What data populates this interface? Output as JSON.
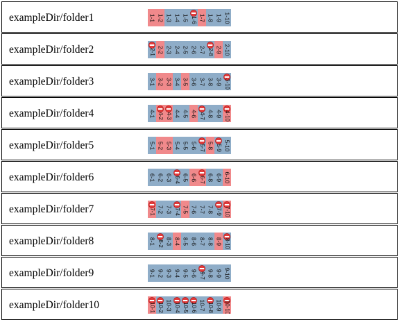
{
  "rows": [
    {
      "path": "exampleDir/folder1",
      "cells": [
        {
          "label": "1-1",
          "color": "red",
          "blocked": false
        },
        {
          "label": "1-2",
          "color": "red",
          "blocked": false
        },
        {
          "label": "1-3",
          "color": "blue",
          "blocked": false
        },
        {
          "label": "1-4",
          "color": "blue",
          "blocked": false
        },
        {
          "label": "1-5",
          "color": "blue",
          "blocked": false
        },
        {
          "label": "1-6",
          "color": "blue",
          "blocked": true
        },
        {
          "label": "1-7",
          "color": "red",
          "blocked": false
        },
        {
          "label": "1-8",
          "color": "blue",
          "blocked": false
        },
        {
          "label": "1-9",
          "color": "blue",
          "blocked": false
        },
        {
          "label": "1-10",
          "color": "blue",
          "blocked": false
        }
      ]
    },
    {
      "path": "exampleDir/folder2",
      "cells": [
        {
          "label": "2-1",
          "color": "blue",
          "blocked": true
        },
        {
          "label": "2-2",
          "color": "red",
          "blocked": false
        },
        {
          "label": "2-3",
          "color": "blue",
          "blocked": false
        },
        {
          "label": "2-4",
          "color": "blue",
          "blocked": false
        },
        {
          "label": "2-5",
          "color": "blue",
          "blocked": false
        },
        {
          "label": "2-6",
          "color": "blue",
          "blocked": false
        },
        {
          "label": "2-7",
          "color": "blue",
          "blocked": false
        },
        {
          "label": "2-8",
          "color": "blue",
          "blocked": true
        },
        {
          "label": "2-9",
          "color": "red",
          "blocked": false
        },
        {
          "label": "2-10",
          "color": "blue",
          "blocked": false
        }
      ]
    },
    {
      "path": "exampleDir/folder3",
      "cells": [
        {
          "label": "3-1",
          "color": "blue",
          "blocked": false
        },
        {
          "label": "3-2",
          "color": "red",
          "blocked": false
        },
        {
          "label": "3-3",
          "color": "red",
          "blocked": false
        },
        {
          "label": "3-4",
          "color": "blue",
          "blocked": false
        },
        {
          "label": "3-5",
          "color": "red",
          "blocked": false
        },
        {
          "label": "3-6",
          "color": "blue",
          "blocked": false
        },
        {
          "label": "3-7",
          "color": "blue",
          "blocked": false
        },
        {
          "label": "3-8",
          "color": "blue",
          "blocked": false
        },
        {
          "label": "3-9",
          "color": "blue",
          "blocked": false
        },
        {
          "label": "3-10",
          "color": "blue",
          "blocked": true
        }
      ]
    },
    {
      "path": "exampleDir/folder4",
      "cells": [
        {
          "label": "4-1",
          "color": "blue",
          "blocked": false
        },
        {
          "label": "4-2",
          "color": "red",
          "blocked": true
        },
        {
          "label": "4-3",
          "color": "red",
          "blocked": true
        },
        {
          "label": "4-4",
          "color": "blue",
          "blocked": false
        },
        {
          "label": "4-5",
          "color": "blue",
          "blocked": false
        },
        {
          "label": "4-6",
          "color": "red",
          "blocked": false
        },
        {
          "label": "4-7",
          "color": "blue",
          "blocked": true
        },
        {
          "label": "4-8",
          "color": "blue",
          "blocked": false
        },
        {
          "label": "4-9",
          "color": "blue",
          "blocked": false
        },
        {
          "label": "4-10",
          "color": "red",
          "blocked": true
        }
      ]
    },
    {
      "path": "exampleDir/folder5",
      "cells": [
        {
          "label": "5-1",
          "color": "blue",
          "blocked": false
        },
        {
          "label": "5-2",
          "color": "red",
          "blocked": false
        },
        {
          "label": "5-3",
          "color": "red",
          "blocked": false
        },
        {
          "label": "5-4",
          "color": "blue",
          "blocked": false
        },
        {
          "label": "5-5",
          "color": "blue",
          "blocked": false
        },
        {
          "label": "5-6",
          "color": "blue",
          "blocked": false
        },
        {
          "label": "5-7",
          "color": "blue",
          "blocked": true
        },
        {
          "label": "5-8",
          "color": "red",
          "blocked": false
        },
        {
          "label": "5-9",
          "color": "blue",
          "blocked": true
        },
        {
          "label": "5-10",
          "color": "blue",
          "blocked": false
        }
      ]
    },
    {
      "path": "exampleDir/folder6",
      "cells": [
        {
          "label": "6-1",
          "color": "blue",
          "blocked": false
        },
        {
          "label": "6-2",
          "color": "blue",
          "blocked": false
        },
        {
          "label": "6-3",
          "color": "blue",
          "blocked": false
        },
        {
          "label": "6-4",
          "color": "blue",
          "blocked": true
        },
        {
          "label": "6-5",
          "color": "blue",
          "blocked": false
        },
        {
          "label": "6-6",
          "color": "red",
          "blocked": false
        },
        {
          "label": "6-7",
          "color": "red",
          "blocked": true
        },
        {
          "label": "6-8",
          "color": "blue",
          "blocked": false
        },
        {
          "label": "6-9",
          "color": "blue",
          "blocked": false
        },
        {
          "label": "6-10",
          "color": "red",
          "blocked": false
        }
      ]
    },
    {
      "path": "exampleDir/folder7",
      "cells": [
        {
          "label": "7-1",
          "color": "red",
          "blocked": true
        },
        {
          "label": "7-2",
          "color": "blue",
          "blocked": false
        },
        {
          "label": "7-3",
          "color": "blue",
          "blocked": false
        },
        {
          "label": "7-4",
          "color": "blue",
          "blocked": true
        },
        {
          "label": "7-5",
          "color": "red",
          "blocked": false
        },
        {
          "label": "7-6",
          "color": "blue",
          "blocked": false
        },
        {
          "label": "7-7",
          "color": "blue",
          "blocked": false
        },
        {
          "label": "7-8",
          "color": "blue",
          "blocked": false
        },
        {
          "label": "7-9",
          "color": "blue",
          "blocked": true
        },
        {
          "label": "7-10",
          "color": "red",
          "blocked": true
        }
      ]
    },
    {
      "path": "exampleDir/folder8",
      "cells": [
        {
          "label": "8-1",
          "color": "blue",
          "blocked": false
        },
        {
          "label": "8-2",
          "color": "blue",
          "blocked": true
        },
        {
          "label": "8-3",
          "color": "blue",
          "blocked": false
        },
        {
          "label": "8-4",
          "color": "red",
          "blocked": false
        },
        {
          "label": "8-5",
          "color": "blue",
          "blocked": false
        },
        {
          "label": "8-6",
          "color": "blue",
          "blocked": false
        },
        {
          "label": "8-7",
          "color": "blue",
          "blocked": false
        },
        {
          "label": "8-8",
          "color": "blue",
          "blocked": false
        },
        {
          "label": "8-9",
          "color": "red",
          "blocked": false
        },
        {
          "label": "8-10",
          "color": "blue",
          "blocked": true
        }
      ]
    },
    {
      "path": "exampleDir/folder9",
      "cells": [
        {
          "label": "9-1",
          "color": "blue",
          "blocked": false
        },
        {
          "label": "9-2",
          "color": "blue",
          "blocked": false
        },
        {
          "label": "9-3",
          "color": "blue",
          "blocked": false
        },
        {
          "label": "9-4",
          "color": "blue",
          "blocked": false
        },
        {
          "label": "9-5",
          "color": "blue",
          "blocked": false
        },
        {
          "label": "9-6",
          "color": "blue",
          "blocked": false
        },
        {
          "label": "9-7",
          "color": "blue",
          "blocked": true
        },
        {
          "label": "9-8",
          "color": "blue",
          "blocked": false
        },
        {
          "label": "9-9",
          "color": "blue",
          "blocked": false
        },
        {
          "label": "9-10",
          "color": "blue",
          "blocked": false
        }
      ]
    },
    {
      "path": "exampleDir/folder10",
      "cells": [
        {
          "label": "10-1",
          "color": "red",
          "blocked": true
        },
        {
          "label": "10-2",
          "color": "blue",
          "blocked": true
        },
        {
          "label": "10-3",
          "color": "blue",
          "blocked": false
        },
        {
          "label": "10-4",
          "color": "blue",
          "blocked": true
        },
        {
          "label": "10-5",
          "color": "blue",
          "blocked": true
        },
        {
          "label": "10-6",
          "color": "blue",
          "blocked": true
        },
        {
          "label": "10-7",
          "color": "blue",
          "blocked": false
        },
        {
          "label": "10-8",
          "color": "blue",
          "blocked": true
        },
        {
          "label": "10-9",
          "color": "blue",
          "blocked": false
        },
        {
          "label": "10-10",
          "color": "red",
          "blocked": true
        }
      ]
    }
  ],
  "colors": {
    "blue": "#8fadc8",
    "red": "#f0898b"
  },
  "icons": {
    "blocked": "no-entry-icon"
  }
}
